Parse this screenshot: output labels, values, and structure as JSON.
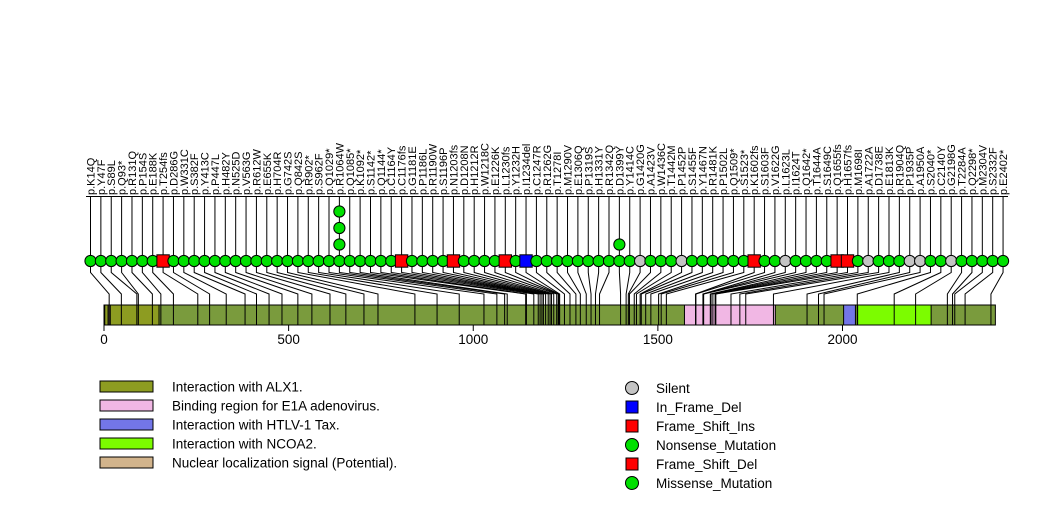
{
  "chart_data": {
    "type": "lollipop",
    "title": "",
    "protein_length": 2414,
    "axis_ticks": [
      0,
      500,
      1000,
      1500,
      2000
    ],
    "grid": false,
    "colors": {
      "backbone": "#7A9B3D",
      "stem": "#000000",
      "marker_green": "#00E000",
      "marker_gray": "#C4C4C4",
      "marker_red": "#FF0000",
      "marker_blue": "#0000FF"
    },
    "mutation_styles": {
      "Silent": {
        "shape": "circle",
        "color": "#C4C4C4"
      },
      "In_Frame_Del": {
        "shape": "square",
        "color": "#0000FF"
      },
      "Frame_Shift_Ins": {
        "shape": "square",
        "color": "#FF0000"
      },
      "Nonsense_Mutation": {
        "shape": "circle",
        "color": "#00E000"
      },
      "Frame_Shift_Del": {
        "shape": "square",
        "color": "#FF0000"
      },
      "Missense_Mutation": {
        "shape": "circle",
        "color": "#00E000"
      }
    },
    "legend_right": [
      {
        "label": "Silent",
        "shape": "circle",
        "color": "#C4C4C4"
      },
      {
        "label": "In_Frame_Del",
        "shape": "square",
        "color": "#0000FF"
      },
      {
        "label": "Frame_Shift_Ins",
        "shape": "square",
        "color": "#FF0000"
      },
      {
        "label": "Nonsense_Mutation",
        "shape": "circle",
        "color": "#00E000"
      },
      {
        "label": "Frame_Shift_Del",
        "shape": "square",
        "color": "#FF0000"
      },
      {
        "label": "Missense_Mutation",
        "shape": "circle",
        "color": "#00E000"
      }
    ],
    "features": [
      {
        "name": "Interaction with ALX1.",
        "color": "#8D9C21",
        "start": 2,
        "end": 149
      },
      {
        "name": "Binding region for E1A adenovirus.",
        "color": "#F1B7E4",
        "start": 1572,
        "end": 1818
      },
      {
        "name": "Interaction with HTLV-1 Tax.",
        "color": "#7376E8",
        "start": 2003,
        "end": 2035
      },
      {
        "name": "Interaction with NCOA2.",
        "color": "#7CFC00",
        "start": 2041,
        "end": 2240
      },
      {
        "name": "Nuclear localization signal (Potential).",
        "color": "#D2B48C",
        "start": 11,
        "end": 17
      }
    ],
    "mutations": [
      {
        "label": "p.K14Q",
        "type": "Missense_Mutation",
        "pos": 14,
        "count": 1
      },
      {
        "label": "p.Y47F",
        "type": "Missense_Mutation",
        "pos": 47,
        "count": 1
      },
      {
        "label": "p.S89L",
        "type": "Missense_Mutation",
        "pos": 89,
        "count": 1
      },
      {
        "label": "p.Q93*",
        "type": "Nonsense_Mutation",
        "pos": 93,
        "count": 1
      },
      {
        "label": "p.R131Q",
        "type": "Missense_Mutation",
        "pos": 131,
        "count": 1
      },
      {
        "label": "p.P154S",
        "type": "Missense_Mutation",
        "pos": 154,
        "count": 1
      },
      {
        "label": "p.E188K",
        "type": "Missense_Mutation",
        "pos": 188,
        "count": 1
      },
      {
        "label": "p.T254fs",
        "type": "Frame_Shift_Ins",
        "pos": 254,
        "count": 1
      },
      {
        "label": "p.D286G",
        "type": "Missense_Mutation",
        "pos": 286,
        "count": 1
      },
      {
        "label": "p.W331C",
        "type": "Missense_Mutation",
        "pos": 331,
        "count": 1
      },
      {
        "label": "p.S382F",
        "type": "Missense_Mutation",
        "pos": 382,
        "count": 1
      },
      {
        "label": "p.Y413C",
        "type": "Missense_Mutation",
        "pos": 413,
        "count": 1
      },
      {
        "label": "p.P447L",
        "type": "Missense_Mutation",
        "pos": 447,
        "count": 1
      },
      {
        "label": "p.H482Y",
        "type": "Missense_Mutation",
        "pos": 482,
        "count": 1
      },
      {
        "label": "p.N525D",
        "type": "Missense_Mutation",
        "pos": 525,
        "count": 1
      },
      {
        "label": "p.V563G",
        "type": "Missense_Mutation",
        "pos": 563,
        "count": 1
      },
      {
        "label": "p.R612W",
        "type": "Missense_Mutation",
        "pos": 612,
        "count": 1
      },
      {
        "label": "p.E655K",
        "type": "Missense_Mutation",
        "pos": 655,
        "count": 1
      },
      {
        "label": "p.H704R",
        "type": "Missense_Mutation",
        "pos": 704,
        "count": 1
      },
      {
        "label": "p.G742S",
        "type": "Missense_Mutation",
        "pos": 742,
        "count": 1
      },
      {
        "label": "p.Q842S",
        "type": "Missense_Mutation",
        "pos": 842,
        "count": 1
      },
      {
        "label": "p.R902*",
        "type": "Nonsense_Mutation",
        "pos": 902,
        "count": 1
      },
      {
        "label": "p.S962F",
        "type": "Missense_Mutation",
        "pos": 962,
        "count": 1
      },
      {
        "label": "p.Q1029*",
        "type": "Nonsense_Mutation",
        "pos": 1029,
        "count": 1
      },
      {
        "label": "p.R1064W",
        "type": "Missense_Mutation",
        "pos": 1064,
        "count": 4
      },
      {
        "label": "p.Q1085*",
        "type": "Nonsense_Mutation",
        "pos": 1085,
        "count": 1
      },
      {
        "label": "p.K1092*",
        "type": "Nonsense_Mutation",
        "pos": 1092,
        "count": 1
      },
      {
        "label": "p.S1142*",
        "type": "Nonsense_Mutation",
        "pos": 1142,
        "count": 1
      },
      {
        "label": "p.Q1144*",
        "type": "Nonsense_Mutation",
        "pos": 1144,
        "count": 1
      },
      {
        "label": "p.C1164Y",
        "type": "Missense_Mutation",
        "pos": 1164,
        "count": 1
      },
      {
        "label": "p.C1176fs",
        "type": "Frame_Shift_Ins",
        "pos": 1176,
        "count": 1
      },
      {
        "label": "p.G1181E",
        "type": "Missense_Mutation",
        "pos": 1181,
        "count": 1
      },
      {
        "label": "p.P1186L",
        "type": "Missense_Mutation",
        "pos": 1186,
        "count": 1
      },
      {
        "label": "p.R1190W",
        "type": "Missense_Mutation",
        "pos": 1190,
        "count": 1
      },
      {
        "label": "p.S1196P",
        "type": "Missense_Mutation",
        "pos": 1196,
        "count": 1
      },
      {
        "label": "p.N1203fs",
        "type": "Frame_Shift_Del",
        "pos": 1203,
        "count": 1
      },
      {
        "label": "p.D1208N",
        "type": "Missense_Mutation",
        "pos": 1208,
        "count": 1
      },
      {
        "label": "p.H1212R",
        "type": "Missense_Mutation",
        "pos": 1212,
        "count": 1
      },
      {
        "label": "p.W1218C",
        "type": "Missense_Mutation",
        "pos": 1218,
        "count": 1
      },
      {
        "label": "p.E1226K",
        "type": "Missense_Mutation",
        "pos": 1226,
        "count": 1
      },
      {
        "label": "p.L1230fs",
        "type": "Frame_Shift_Ins",
        "pos": 1230,
        "count": 1
      },
      {
        "label": "p.Y1232H",
        "type": "Missense_Mutation",
        "pos": 1232,
        "count": 1
      },
      {
        "label": "p.I1234del",
        "type": "In_Frame_Del",
        "pos": 1234,
        "count": 1
      },
      {
        "label": "p.C1247R",
        "type": "Missense_Mutation",
        "pos": 1247,
        "count": 1
      },
      {
        "label": "p.R1262G",
        "type": "Missense_Mutation",
        "pos": 1262,
        "count": 1
      },
      {
        "label": "p.T1278I",
        "type": "Missense_Mutation",
        "pos": 1278,
        "count": 1
      },
      {
        "label": "p.M1290V",
        "type": "Missense_Mutation",
        "pos": 1290,
        "count": 1
      },
      {
        "label": "p.E1306Q",
        "type": "Missense_Mutation",
        "pos": 1306,
        "count": 1
      },
      {
        "label": "p.P1319S",
        "type": "Missense_Mutation",
        "pos": 1319,
        "count": 1
      },
      {
        "label": "p.H1331Y",
        "type": "Missense_Mutation",
        "pos": 1331,
        "count": 1
      },
      {
        "label": "p.R1342Q",
        "type": "Missense_Mutation",
        "pos": 1342,
        "count": 1
      },
      {
        "label": "p.D1399Y",
        "type": "Missense_Mutation",
        "pos": 1399,
        "count": 2
      },
      {
        "label": "p.Y1414C",
        "type": "Missense_Mutation",
        "pos": 1414,
        "count": 1
      },
      {
        "label": "p.G1420G",
        "type": "Silent",
        "pos": 1420,
        "count": 1
      },
      {
        "label": "p.A1423V",
        "type": "Missense_Mutation",
        "pos": 1423,
        "count": 1
      },
      {
        "label": "p.W1436C",
        "type": "Missense_Mutation",
        "pos": 1436,
        "count": 1
      },
      {
        "label": "p.T1442M",
        "type": "Missense_Mutation",
        "pos": 1442,
        "count": 1
      },
      {
        "label": "p.P1452P",
        "type": "Silent",
        "pos": 1452,
        "count": 1
      },
      {
        "label": "p.S1455F",
        "type": "Missense_Mutation",
        "pos": 1455,
        "count": 1
      },
      {
        "label": "p.Y1467N",
        "type": "Missense_Mutation",
        "pos": 1467,
        "count": 1
      },
      {
        "label": "p.R1481K",
        "type": "Missense_Mutation",
        "pos": 1481,
        "count": 1
      },
      {
        "label": "p.P1502L",
        "type": "Missense_Mutation",
        "pos": 1502,
        "count": 1
      },
      {
        "label": "p.Q1509*",
        "type": "Nonsense_Mutation",
        "pos": 1509,
        "count": 1
      },
      {
        "label": "p.S1523*",
        "type": "Nonsense_Mutation",
        "pos": 1523,
        "count": 1
      },
      {
        "label": "p.K1602fs",
        "type": "Frame_Shift_Ins",
        "pos": 1602,
        "count": 1
      },
      {
        "label": "p.S1603F",
        "type": "Missense_Mutation",
        "pos": 1603,
        "count": 1
      },
      {
        "label": "p.V1622G",
        "type": "Missense_Mutation",
        "pos": 1622,
        "count": 1
      },
      {
        "label": "p.L1623L",
        "type": "Silent",
        "pos": 1623,
        "count": 1
      },
      {
        "label": "p.I1624T",
        "type": "Missense_Mutation",
        "pos": 1624,
        "count": 1
      },
      {
        "label": "p.Q1642*",
        "type": "Nonsense_Mutation",
        "pos": 1642,
        "count": 1
      },
      {
        "label": "p.T1644A",
        "type": "Missense_Mutation",
        "pos": 1644,
        "count": 1
      },
      {
        "label": "p.S1649C",
        "type": "Missense_Mutation",
        "pos": 1649,
        "count": 1
      },
      {
        "label": "p.Q1655fs",
        "type": "Frame_Shift_Del",
        "pos": 1655,
        "count": 1
      },
      {
        "label": "p.H1657fs",
        "type": "Frame_Shift_Ins",
        "pos": 1657,
        "count": 1
      },
      {
        "label": "p.M1698I",
        "type": "Missense_Mutation",
        "pos": 1698,
        "count": 1
      },
      {
        "label": "p.A1722A",
        "type": "Silent",
        "pos": 1722,
        "count": 1
      },
      {
        "label": "p.D1738E",
        "type": "Missense_Mutation",
        "pos": 1738,
        "count": 1
      },
      {
        "label": "p.E1813K",
        "type": "Missense_Mutation",
        "pos": 1813,
        "count": 1
      },
      {
        "label": "p.R1904Q",
        "type": "Missense_Mutation",
        "pos": 1904,
        "count": 1
      },
      {
        "label": "p.P1935P",
        "type": "Silent",
        "pos": 1935,
        "count": 1
      },
      {
        "label": "p.A1950A",
        "type": "Silent",
        "pos": 1950,
        "count": 1
      },
      {
        "label": "p.S2040*",
        "type": "Nonsense_Mutation",
        "pos": 2040,
        "count": 1
      },
      {
        "label": "p.C2140Y",
        "type": "Missense_Mutation",
        "pos": 2140,
        "count": 1
      },
      {
        "label": "p.G2198G",
        "type": "Silent",
        "pos": 2198,
        "count": 1
      },
      {
        "label": "p.T2284A",
        "type": "Missense_Mutation",
        "pos": 2284,
        "count": 1
      },
      {
        "label": "p.Q2298*",
        "type": "Nonsense_Mutation",
        "pos": 2298,
        "count": 1
      },
      {
        "label": "p.M2304V",
        "type": "Missense_Mutation",
        "pos": 2304,
        "count": 1
      },
      {
        "label": "p.S2332F",
        "type": "Missense_Mutation",
        "pos": 2332,
        "count": 1
      },
      {
        "label": "p.E2402*",
        "type": "Nonsense_Mutation",
        "pos": 2402,
        "count": 1
      }
    ]
  }
}
